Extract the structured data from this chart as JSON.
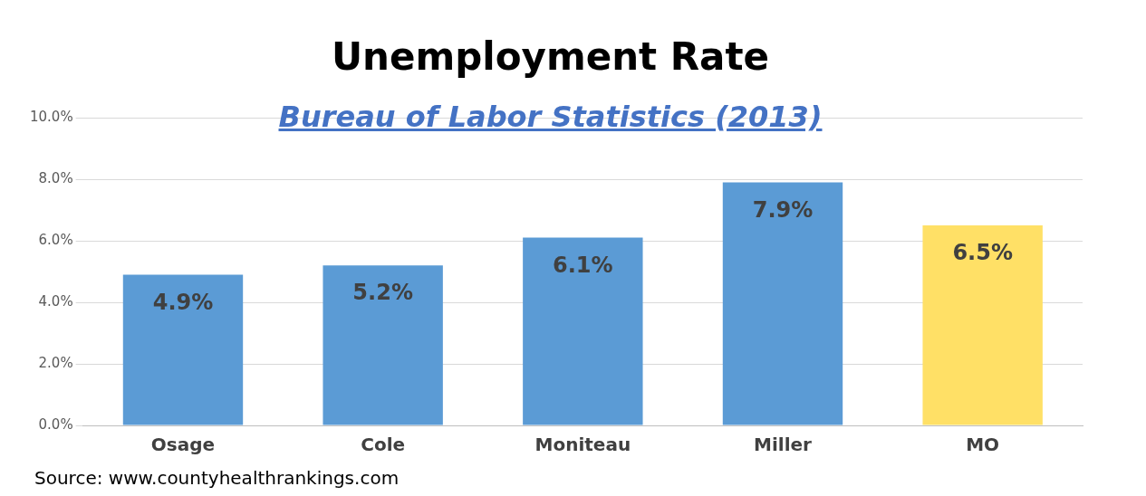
{
  "chart_data": {
    "type": "bar",
    "title": "Unemployment Rate",
    "subtitle": "Bureau of Labor Statistics (2013)",
    "categories": [
      "Osage",
      "Cole",
      "Moniteau",
      "Miller",
      "MO"
    ],
    "values": [
      4.9,
      5.2,
      6.1,
      7.9,
      6.5
    ],
    "colors": [
      "#5b9bd5",
      "#5b9bd5",
      "#5b9bd5",
      "#5b9bd5",
      "#ffe066"
    ],
    "value_labels": [
      "4.9%",
      "5.2%",
      "6.1%",
      "7.9%",
      "6.5%"
    ],
    "ylim": [
      0,
      10
    ],
    "yticks": [
      {
        "value": 0,
        "label": "0.0%"
      },
      {
        "value": 2,
        "label": "2.0%"
      },
      {
        "value": 4,
        "label": "4.0%"
      },
      {
        "value": 6,
        "label": "6.0%"
      },
      {
        "value": 8,
        "label": "8.0%"
      },
      {
        "value": 10,
        "label": "10.0%"
      }
    ],
    "grid": "y",
    "legend": false,
    "annotations": [
      "Source: www.countyhealthrankings.com"
    ]
  }
}
